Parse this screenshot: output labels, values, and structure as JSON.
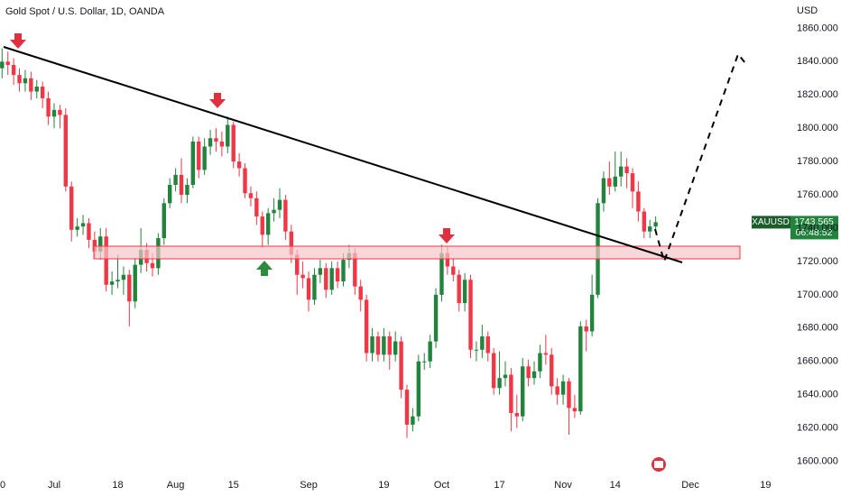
{
  "chart_data": {
    "type": "candlestick",
    "title": "Gold Spot / U.S. Dollar, 1D, OANDA",
    "currency": "USD",
    "symbol": "XAUUSD",
    "countdown": "06:48:52",
    "up_color": "#22833c",
    "down_color": "#f23645",
    "ylim": [
      1590,
      1877
    ],
    "yticks": [
      {
        "value": 1600,
        "label": "1600.000"
      },
      {
        "value": 1620,
        "label": "1620.000"
      },
      {
        "value": 1640,
        "label": "1640.000"
      },
      {
        "value": 1660,
        "label": "1660.000"
      },
      {
        "value": 1680,
        "label": "1680.000"
      },
      {
        "value": 1700,
        "label": "1700.000"
      },
      {
        "value": 1720,
        "label": "1720.000"
      },
      {
        "value": 1740,
        "label": "1740.000"
      },
      {
        "value": 1760,
        "label": "1760.000"
      },
      {
        "value": 1780,
        "label": "1780.000"
      },
      {
        "value": 1800,
        "label": "1800.000"
      },
      {
        "value": 1820,
        "label": "1820.000"
      },
      {
        "value": 1840,
        "label": "1840.000"
      },
      {
        "value": 1860,
        "label": "1860.000"
      }
    ],
    "categories": [
      "0",
      null,
      null,
      null,
      null,
      null,
      null,
      null,
      null,
      "Jul",
      null,
      null,
      null,
      null,
      null,
      null,
      null,
      null,
      null,
      null,
      "18",
      null,
      null,
      null,
      null,
      null,
      null,
      null,
      null,
      null,
      "Aug",
      null,
      null,
      null,
      null,
      null,
      null,
      null,
      null,
      null,
      "15",
      null,
      null,
      null,
      null,
      null,
      null,
      null,
      null,
      null,
      null,
      null,
      null,
      "Sep",
      null,
      null,
      null,
      null,
      null,
      null,
      null,
      null,
      null,
      null,
      null,
      null,
      "19",
      null,
      null,
      null,
      null,
      null,
      null,
      null,
      null,
      null,
      "Oct",
      null,
      null,
      null,
      null,
      null,
      null,
      null,
      null,
      null,
      "17",
      null,
      null,
      null,
      null,
      null,
      null,
      null,
      null,
      null,
      null,
      "Nov",
      null,
      null,
      null,
      null,
      null,
      null,
      null,
      null,
      "14",
      null,
      null,
      null,
      null,
      null,
      null,
      null,
      null,
      null,
      null,
      null,
      null,
      "Dec",
      null,
      null,
      null,
      null,
      null,
      null,
      null,
      null,
      null,
      null,
      null,
      null,
      "19",
      null,
      null,
      null
    ],
    "open": [
      1836,
      1840,
      1838,
      1832,
      1827,
      1830,
      1822,
      1825,
      1818,
      1807,
      1811,
      1808,
      1765,
      1739,
      1741,
      1743,
      1733,
      1726,
      1735,
      1706,
      1708,
      1709,
      1712,
      1696,
      1718,
      1727,
      1719,
      1716,
      1734,
      1755,
      1766,
      1772,
      1760,
      1766,
      1792,
      1775,
      1789,
      1794,
      1792,
      1789,
      1802,
      1780,
      1776,
      1761,
      1758,
      1747,
      1736,
      1749,
      1751,
      1757,
      1738,
      1724,
      1712,
      1710,
      1697,
      1712,
      1716,
      1703,
      1716,
      1708,
      1721,
      1725,
      1705,
      1697,
      1665,
      1675,
      1664,
      1675,
      1664,
      1672,
      1643,
      1622,
      1627,
      1660,
      1660,
      1672,
      1700,
      1725,
      1717,
      1712,
      1695,
      1709,
      1667,
      1667,
      1675,
      1665,
      1644,
      1650,
      1652,
      1629,
      1627,
      1657,
      1650,
      1654,
      1665,
      1664,
      1645,
      1640,
      1648,
      1632,
      1630,
      1681,
      1678,
      1700,
      1755,
      1770,
      1765,
      1771,
      1777,
      1773,
      1762,
      1750,
      1738,
      1741,
      null,
      null,
      null,
      null,
      null,
      null,
      null,
      null,
      null,
      null,
      null,
      null,
      null,
      null,
      null,
      null,
      null,
      null,
      null,
      null,
      null,
      null
    ],
    "high": [
      1848,
      1846,
      1842,
      1836,
      1835,
      1834,
      1829,
      1828,
      1822,
      1815,
      1814,
      1812,
      1768,
      1746,
      1748,
      1746,
      1738,
      1740,
      1740,
      1714,
      1724,
      1717,
      1715,
      1722,
      1740,
      1731,
      1725,
      1737,
      1758,
      1770,
      1776,
      1782,
      1770,
      1795,
      1795,
      1794,
      1799,
      1800,
      1798,
      1807,
      1804,
      1785,
      1779,
      1765,
      1762,
      1750,
      1752,
      1758,
      1764,
      1760,
      1742,
      1727,
      1720,
      1714,
      1716,
      1721,
      1719,
      1720,
      1720,
      1725,
      1730,
      1728,
      1709,
      1700,
      1680,
      1678,
      1680,
      1678,
      1678,
      1675,
      1646,
      1632,
      1664,
      1665,
      1676,
      1704,
      1730,
      1729,
      1722,
      1715,
      1713,
      1712,
      1672,
      1682,
      1678,
      1668,
      1666,
      1660,
      1656,
      1640,
      1662,
      1661,
      1660,
      1670,
      1676,
      1668,
      1650,
      1652,
      1650,
      1640,
      1684,
      1685,
      1712,
      1758,
      1774,
      1780,
      1786,
      1786,
      1782,
      1776,
      1768,
      1752,
      1745,
      1747,
      null,
      null,
      null,
      null,
      null,
      null,
      null,
      null,
      null,
      null,
      null,
      null,
      null,
      null,
      null,
      null,
      null,
      null,
      null,
      null,
      null,
      null
    ],
    "low": [
      1830,
      1832,
      1826,
      1822,
      1822,
      1817,
      1818,
      1812,
      1802,
      1800,
      1800,
      1762,
      1732,
      1735,
      1736,
      1728,
      1722,
      1721,
      1702,
      1700,
      1704,
      1700,
      1681,
      1692,
      1713,
      1714,
      1711,
      1712,
      1730,
      1752,
      1762,
      1755,
      1755,
      1764,
      1770,
      1772,
      1784,
      1786,
      1783,
      1785,
      1776,
      1771,
      1758,
      1753,
      1742,
      1728,
      1730,
      1744,
      1746,
      1733,
      1719,
      1700,
      1704,
      1690,
      1694,
      1707,
      1698,
      1700,
      1704,
      1705,
      1716,
      1700,
      1690,
      1660,
      1660,
      1660,
      1660,
      1655,
      1660,
      1638,
      1614,
      1618,
      1624,
      1655,
      1656,
      1668,
      1696,
      1712,
      1708,
      1690,
      1690,
      1662,
      1660,
      1662,
      1660,
      1640,
      1640,
      1645,
      1618,
      1620,
      1624,
      1645,
      1646,
      1650,
      1658,
      1640,
      1634,
      1634,
      1616,
      1626,
      1628,
      1666,
      1675,
      1698,
      1750,
      1760,
      1762,
      1765,
      1764,
      1752,
      1744,
      1734,
      1734,
      1738,
      null,
      null,
      null,
      null,
      null,
      null,
      null,
      null,
      null,
      null,
      null,
      null,
      null,
      null,
      null,
      null,
      null,
      null,
      null,
      null,
      null,
      null
    ],
    "close": [
      1840,
      1838,
      1832,
      1827,
      1830,
      1822,
      1825,
      1818,
      1807,
      1811,
      1808,
      1765,
      1739,
      1741,
      1743,
      1733,
      1726,
      1735,
      1706,
      1708,
      1709,
      1712,
      1696,
      1718,
      1727,
      1719,
      1716,
      1734,
      1755,
      1766,
      1772,
      1760,
      1766,
      1792,
      1775,
      1789,
      1794,
      1792,
      1789,
      1802,
      1780,
      1776,
      1761,
      1758,
      1747,
      1736,
      1749,
      1751,
      1757,
      1738,
      1724,
      1712,
      1710,
      1697,
      1712,
      1716,
      1703,
      1716,
      1708,
      1721,
      1725,
      1705,
      1697,
      1665,
      1675,
      1664,
      1675,
      1664,
      1672,
      1643,
      1622,
      1627,
      1660,
      1660,
      1672,
      1700,
      1725,
      1717,
      1712,
      1695,
      1709,
      1667,
      1667,
      1675,
      1665,
      1644,
      1650,
      1652,
      1629,
      1627,
      1657,
      1650,
      1654,
      1665,
      1664,
      1645,
      1640,
      1648,
      1632,
      1630,
      1681,
      1678,
      1700,
      1755,
      1770,
      1765,
      1771,
      1777,
      1773,
      1762,
      1750,
      1738,
      1741,
      1743.565,
      null,
      null,
      null,
      null,
      null,
      null,
      null,
      null,
      null,
      null,
      null,
      null,
      null,
      null,
      null,
      null,
      null,
      null,
      null,
      null,
      null,
      null
    ]
  }
}
